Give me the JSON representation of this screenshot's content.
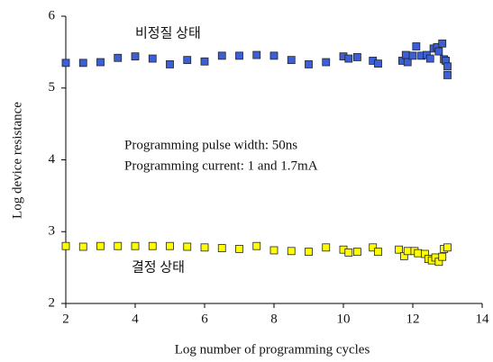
{
  "chart_data": {
    "type": "scatter",
    "xlabel": "Log number of programming cycles",
    "ylabel": "Log device resistance",
    "annotations": [
      "비정질 상태",
      "결정 상태",
      "Programming pulse width: 50ns",
      "Programming current: 1 and 1.7mA"
    ],
    "xlim": [
      2,
      14
    ],
    "xticks": [
      2,
      4,
      6,
      8,
      10,
      12,
      14
    ],
    "ylim": [
      2,
      6
    ],
    "yticks": [
      2,
      3,
      4,
      5,
      6
    ],
    "series": [
      {
        "color": "#3d5fd6",
        "x": [
          2.0,
          2.5,
          3.0,
          3.5,
          4.0,
          4.5,
          5.0,
          5.5,
          6.0,
          6.5,
          7.0,
          7.5,
          8.0,
          8.5,
          9.0,
          9.5,
          10.0,
          10.15,
          10.4,
          10.85,
          11.0,
          11.7,
          11.8,
          11.85,
          12.0,
          12.1,
          12.25,
          12.4,
          12.5,
          12.6,
          12.7,
          12.75,
          12.85,
          12.9,
          12.95,
          13.0,
          13.0
        ],
        "values": [
          5.35,
          5.35,
          5.36,
          5.42,
          5.44,
          5.41,
          5.33,
          5.39,
          5.37,
          5.45,
          5.45,
          5.46,
          5.45,
          5.39,
          5.33,
          5.36,
          5.44,
          5.41,
          5.43,
          5.38,
          5.34,
          5.38,
          5.46,
          5.36,
          5.45,
          5.58,
          5.45,
          5.46,
          5.41,
          5.55,
          5.57,
          5.51,
          5.62,
          5.4,
          5.38,
          5.3,
          5.18
        ]
      },
      {
        "color": "#ffff00",
        "x": [
          2.0,
          2.5,
          3.0,
          3.5,
          4.0,
          4.5,
          5.0,
          5.5,
          6.0,
          6.5,
          7.0,
          7.5,
          8.0,
          8.5,
          9.0,
          9.5,
          10.0,
          10.15,
          10.4,
          10.85,
          11.0,
          11.6,
          11.75,
          11.85,
          12.05,
          12.15,
          12.35,
          12.45,
          12.55,
          12.65,
          12.75,
          12.85,
          12.9,
          13.0
        ],
        "values": [
          2.8,
          2.79,
          2.8,
          2.8,
          2.8,
          2.8,
          2.8,
          2.79,
          2.78,
          2.77,
          2.76,
          2.8,
          2.74,
          2.73,
          2.72,
          2.78,
          2.75,
          2.71,
          2.72,
          2.78,
          2.72,
          2.75,
          2.66,
          2.73,
          2.73,
          2.7,
          2.69,
          2.62,
          2.6,
          2.64,
          2.58,
          2.65,
          2.76,
          2.78
        ]
      }
    ]
  }
}
